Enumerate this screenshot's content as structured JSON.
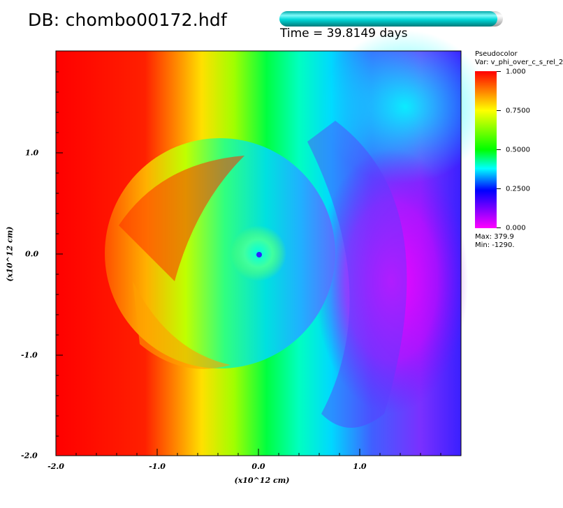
{
  "header": {
    "db_label": "DB: chombo00172.hdf",
    "time_label": "Time = 39.8149 days",
    "time_progress": 0.975
  },
  "plot": {
    "x_ticks": [
      "-2.0",
      "-1.0",
      "0.0",
      "1.0"
    ],
    "y_ticks": [
      "1.0",
      "0.0",
      "-1.0",
      "-2.0"
    ],
    "x_label": "(x10^12 cm)",
    "y_label": "(x10^12 cm)"
  },
  "legend": {
    "title": "Pseudocolor",
    "var": "Var: v_phi_over_c_s_rel_2",
    "ticks": [
      "1.000",
      "0.7500",
      "0.5000",
      "0.2500",
      "0.000"
    ],
    "max": "Max:  379.9",
    "min": "Min: -1290."
  },
  "colors": {
    "red": "#ff0000",
    "yellow": "#ffff00",
    "green": "#00ff00",
    "cyan": "#00ffff",
    "blue": "#0000ff",
    "magenta": "#ff00ff"
  }
}
